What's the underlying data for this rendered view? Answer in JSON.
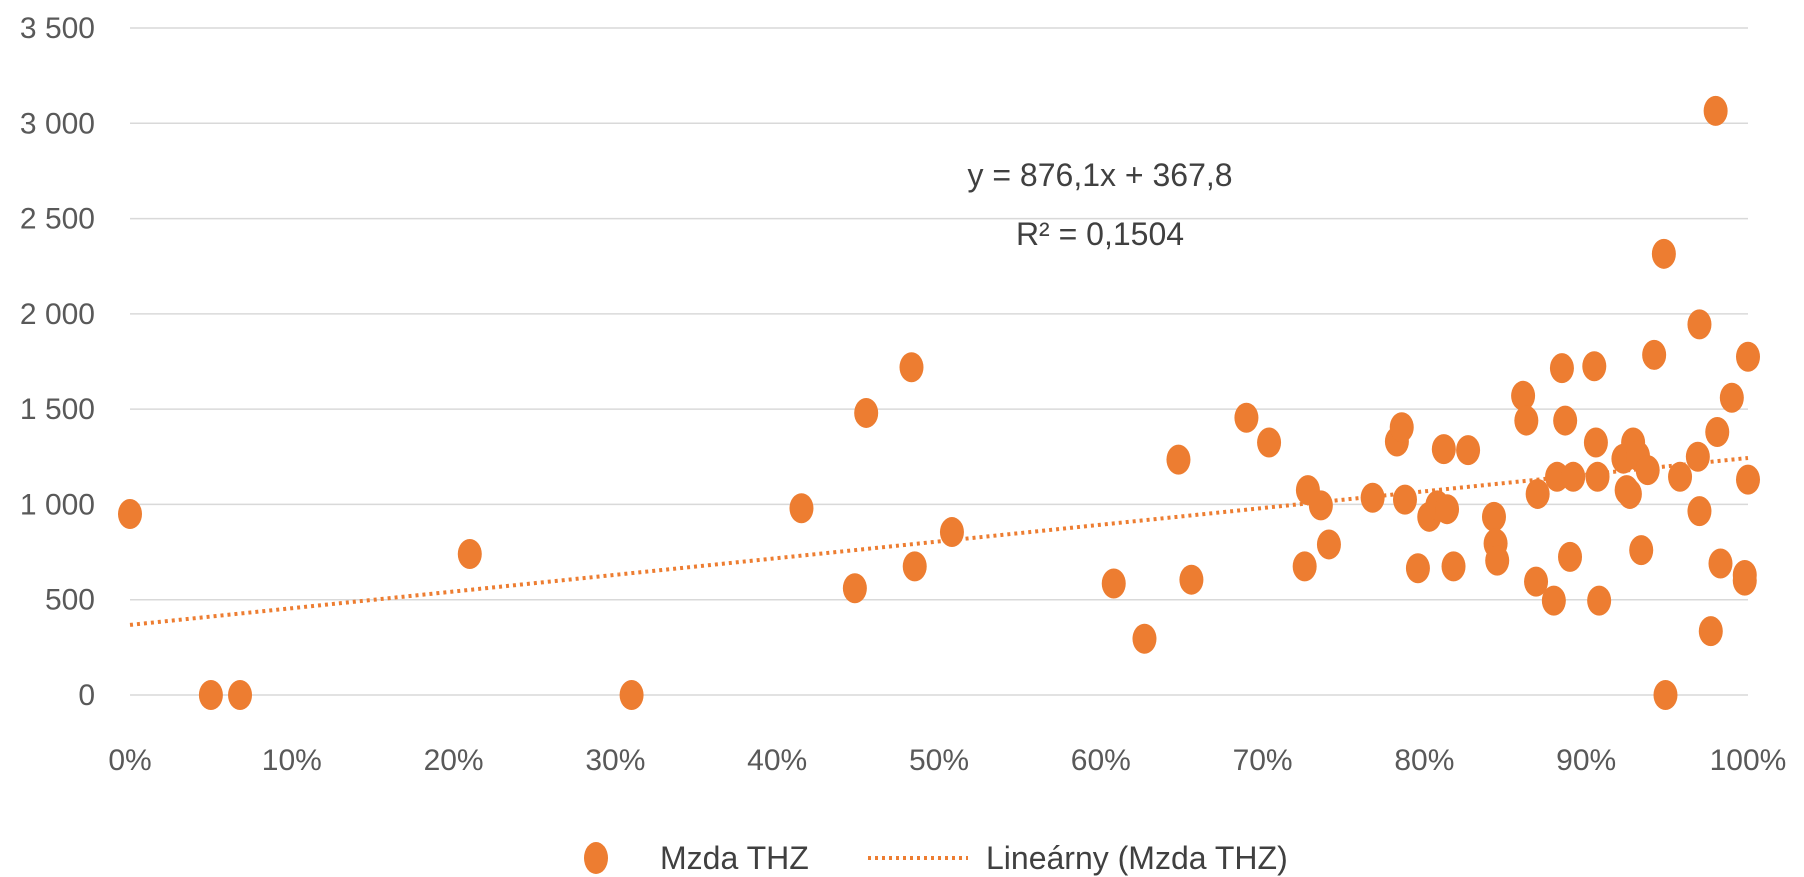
{
  "chart_data": {
    "type": "scatter",
    "title": "",
    "xlabel": "",
    "ylabel": "",
    "xlim": [
      0,
      1
    ],
    "ylim": [
      0,
      3500
    ],
    "x_ticks": [
      0,
      0.1,
      0.2,
      0.3,
      0.4,
      0.5,
      0.6,
      0.7,
      0.8,
      0.9,
      1
    ],
    "x_tick_labels": [
      "0%",
      "10%",
      "20%",
      "30%",
      "40%",
      "50%",
      "60%",
      "70%",
      "80%",
      "90%",
      "100%"
    ],
    "y_ticks": [
      0,
      500,
      1000,
      1500,
      2000,
      2500,
      3000,
      3500
    ],
    "y_tick_labels": [
      "0",
      "500",
      "1 000",
      "1 500",
      "2 000",
      "2 500",
      "3 000",
      "3 500"
    ],
    "grid": "horizontal",
    "legend_position": "bottom",
    "colors": {
      "points": "#ED7D31",
      "trendline": "#ED7D31",
      "grid": "#D9D9D9",
      "text": "#595959"
    },
    "series": [
      {
        "name": "Mzda THZ",
        "points": [
          [
            0.0,
            950
          ],
          [
            0.05,
            0
          ],
          [
            0.068,
            0
          ],
          [
            0.21,
            740
          ],
          [
            0.31,
            0
          ],
          [
            0.415,
            980
          ],
          [
            0.448,
            560
          ],
          [
            0.455,
            1480
          ],
          [
            0.483,
            1720
          ],
          [
            0.485,
            675
          ],
          [
            0.508,
            855
          ],
          [
            0.608,
            585
          ],
          [
            0.627,
            295
          ],
          [
            0.648,
            1235
          ],
          [
            0.656,
            605
          ],
          [
            0.69,
            1455
          ],
          [
            0.704,
            1325
          ],
          [
            0.726,
            675
          ],
          [
            0.728,
            1075
          ],
          [
            0.736,
            995
          ],
          [
            0.741,
            790
          ],
          [
            0.768,
            1035
          ],
          [
            0.783,
            1330
          ],
          [
            0.786,
            1405
          ],
          [
            0.788,
            1025
          ],
          [
            0.796,
            665
          ],
          [
            0.803,
            935
          ],
          [
            0.808,
            995
          ],
          [
            0.812,
            1290
          ],
          [
            0.814,
            975
          ],
          [
            0.818,
            675
          ],
          [
            0.827,
            1285
          ],
          [
            0.843,
            935
          ],
          [
            0.844,
            795
          ],
          [
            0.845,
            705
          ],
          [
            0.861,
            1570
          ],
          [
            0.863,
            1440
          ],
          [
            0.869,
            595
          ],
          [
            0.87,
            1055
          ],
          [
            0.88,
            495
          ],
          [
            0.882,
            1145
          ],
          [
            0.885,
            1715
          ],
          [
            0.887,
            1440
          ],
          [
            0.89,
            725
          ],
          [
            0.892,
            1145
          ],
          [
            0.905,
            1725
          ],
          [
            0.906,
            1325
          ],
          [
            0.907,
            1145
          ],
          [
            0.908,
            495
          ],
          [
            0.923,
            1240
          ],
          [
            0.925,
            1075
          ],
          [
            0.927,
            1055
          ],
          [
            0.929,
            1325
          ],
          [
            0.932,
            1255
          ],
          [
            0.934,
            760
          ],
          [
            0.938,
            1180
          ],
          [
            0.942,
            1785
          ],
          [
            0.948,
            2315
          ],
          [
            0.949,
            0
          ],
          [
            0.958,
            1145
          ],
          [
            0.97,
            1945
          ],
          [
            0.969,
            1250
          ],
          [
            0.97,
            965
          ],
          [
            0.977,
            335
          ],
          [
            0.98,
            3065
          ],
          [
            0.981,
            1380
          ],
          [
            0.983,
            690
          ],
          [
            0.99,
            1560
          ],
          [
            0.998,
            630
          ],
          [
            0.998,
            600
          ],
          [
            1.0,
            1775
          ],
          [
            1.0,
            1130
          ]
        ]
      }
    ],
    "trendline": {
      "name": "Lineárny (Mzda THZ)",
      "type": "linear",
      "slope": 876.1,
      "intercept": 367.8,
      "equation_label": "y = 876,1x + 367,8",
      "r2_label": "R² = 0,1504"
    }
  }
}
